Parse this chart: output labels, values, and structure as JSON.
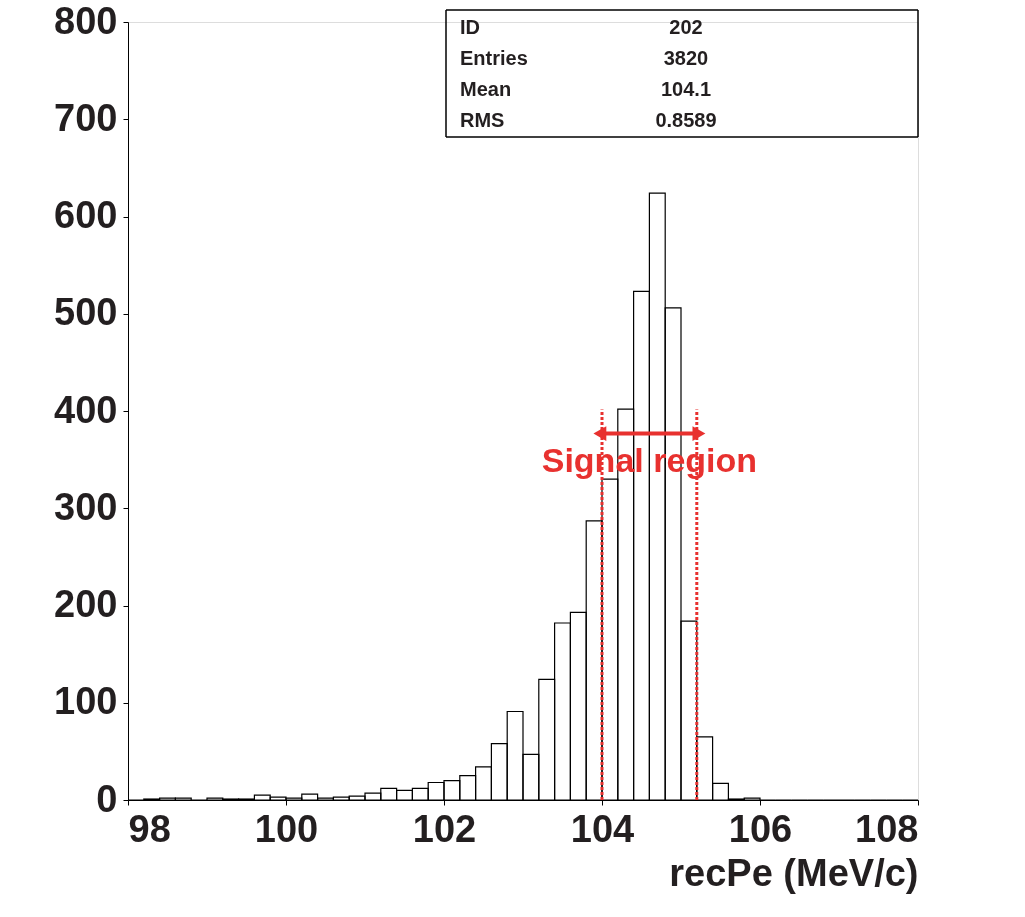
{
  "chart_data": {
    "type": "histogram",
    "xlabel": "recPe (MeV/c)",
    "bins": [
      98.0,
      98.2,
      98.4,
      98.6,
      98.8,
      99.0,
      99.2,
      99.4,
      99.6,
      99.8,
      100.0,
      100.2,
      100.4,
      100.6,
      100.8,
      101.0,
      101.2,
      101.4,
      101.6,
      101.8,
      102.0,
      102.2,
      102.4,
      102.6,
      102.8,
      103.0,
      103.2,
      103.4,
      103.6,
      103.8,
      104.0,
      104.2,
      104.4,
      104.6,
      104.8,
      105.0,
      105.2,
      105.4,
      105.6,
      105.8,
      106.0,
      106.2,
      106.4,
      106.6,
      106.8,
      107.0,
      107.2,
      107.4,
      107.6,
      107.8,
      108.0
    ],
    "values": [
      0,
      1,
      2,
      2,
      0,
      2,
      1,
      1,
      5,
      3,
      2,
      6,
      2,
      3,
      4,
      7,
      12,
      10,
      12,
      18,
      20,
      25,
      34,
      58,
      91,
      47,
      124,
      182,
      193,
      287,
      330,
      402,
      523,
      624,
      506,
      184,
      65,
      17,
      1,
      2,
      0,
      0,
      0,
      0,
      0,
      0,
      0,
      0,
      0,
      0
    ],
    "color": "#000000",
    "xlim": [
      98,
      108
    ],
    "xticks": [
      98,
      100,
      102,
      104,
      106,
      108
    ],
    "ylim": [
      0,
      800
    ],
    "yticks": [
      0,
      100,
      200,
      300,
      400,
      500,
      600,
      700,
      800
    ],
    "ref_lines": [
      {
        "axis": "x",
        "value": 104.0,
        "color": "#e8312f",
        "line_style": "dotted"
      },
      {
        "axis": "x",
        "value": 105.2,
        "color": "#e8312f",
        "line_style": "dotted"
      }
    ],
    "annotations": [
      {
        "text": "Signal region",
        "x": 104.6,
        "y": 348
      },
      "ID",
      "202",
      "Entries",
      "3820",
      "Mean",
      "104.1",
      "RMS",
      "0.8589"
    ],
    "grid": false
  }
}
